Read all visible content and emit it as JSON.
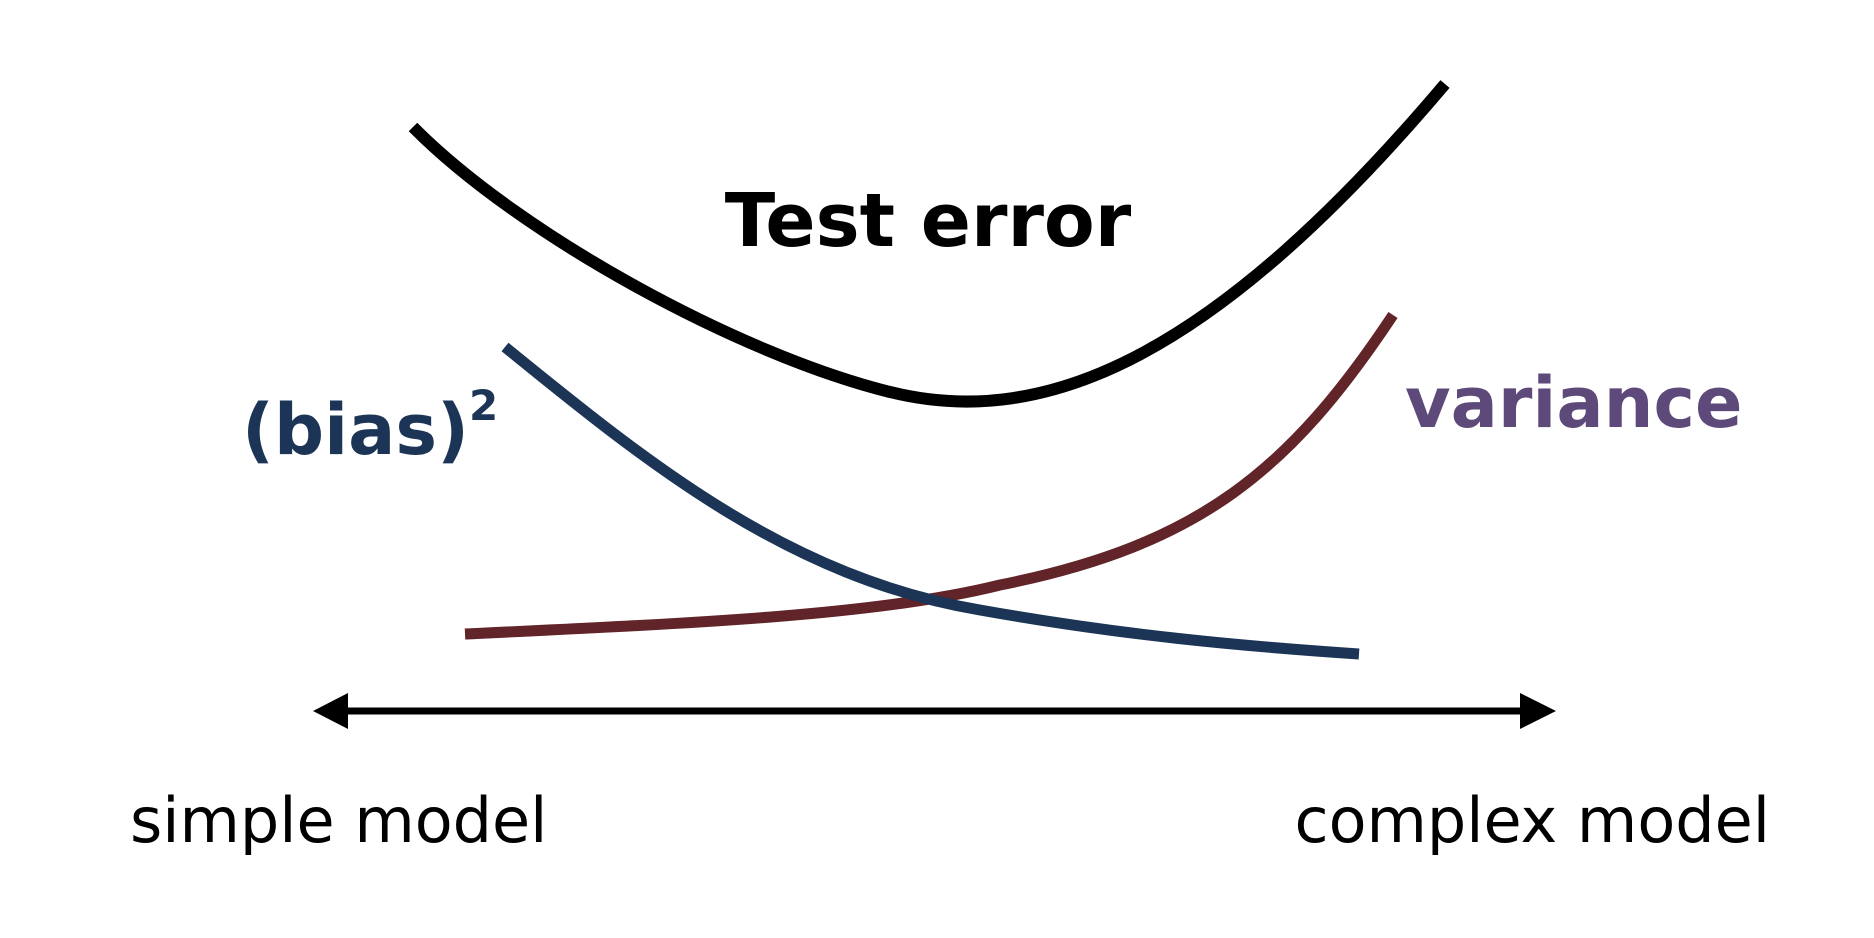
{
  "labels": {
    "test_error": "Test error",
    "bias": "(bias)",
    "bias_superscript": "2",
    "variance": "variance",
    "left_end": "simple model",
    "right_end": "complex model"
  },
  "colors": {
    "test_error": "#000000",
    "bias": "#1c3557",
    "variance": "#612428",
    "variance_label": "#5e4a7a",
    "axis": "#000000"
  }
}
